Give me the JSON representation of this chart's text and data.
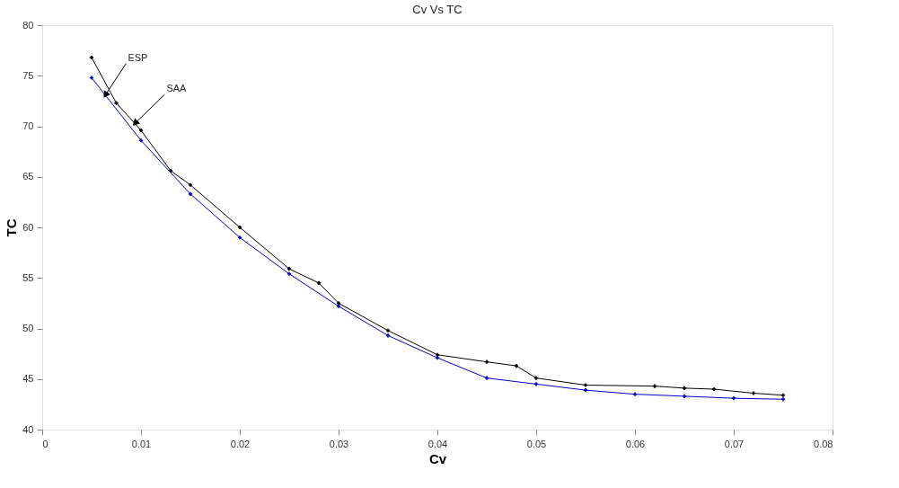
{
  "chart_data": {
    "type": "line",
    "title": "Cv Vs TC",
    "xlabel": "Cv",
    "ylabel": "TC",
    "series": [
      {
        "color": "#000000",
        "x": [
          0.005,
          0.0075,
          0.01,
          0.013,
          0.015,
          0.02,
          0.025,
          0.028,
          0.03,
          0.035,
          0.04,
          0.045,
          0.048,
          0.05,
          0.055,
          0.062,
          0.065,
          0.068,
          0.072,
          0.075
        ],
        "values": [
          76.8,
          72.3,
          69.6,
          65.6,
          64.2,
          60.0,
          55.9,
          54.5,
          52.5,
          49.8,
          47.4,
          46.7,
          46.3,
          45.1,
          44.4,
          44.3,
          44.1,
          44.0,
          43.6,
          43.4
        ]
      },
      {
        "color": "#0000cc",
        "x": [
          0.005,
          0.01,
          0.015,
          0.02,
          0.025,
          0.03,
          0.035,
          0.04,
          0.045,
          0.05,
          0.055,
          0.06,
          0.065,
          0.07,
          0.075
        ],
        "values": [
          74.8,
          68.6,
          63.3,
          59.0,
          55.4,
          52.2,
          49.3,
          47.1,
          45.1,
          44.5,
          43.9,
          43.5,
          43.3,
          43.1,
          43.0
        ]
      }
    ],
    "annotations": [
      {
        "text": "ESP",
        "x": 0.0064,
        "y": 73.1
      },
      {
        "text": "SAA",
        "x": 0.0094,
        "y": 70.3
      }
    ],
    "xlim": [
      0,
      0.08
    ],
    "xticks": [
      0,
      0.01,
      0.02,
      0.03,
      0.04,
      0.05,
      0.06,
      0.07,
      0.08
    ],
    "ylim": [
      40,
      80
    ],
    "yticks": [
      40,
      45,
      50,
      55,
      60,
      65,
      70,
      75,
      80
    ],
    "grid": false,
    "marker": "cross",
    "line_style": "solid"
  }
}
